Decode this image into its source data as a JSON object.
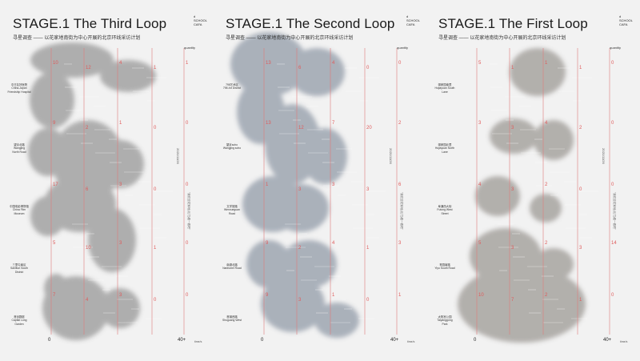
{
  "panels": [
    {
      "title": "STAGE.1 The Third Loop",
      "subtitle": "寻星调查 —— 以花家地南街为中心开展的北京环线采访计划",
      "logo": "d\nSCHOOL\nCAFA",
      "quantity_label": "quantity",
      "date_text": "2021/11/26",
      "note_text": "\"我们去花家地(北门)看一看吧\"",
      "axis_start": "0",
      "axis_end": "40+",
      "axis_unit": "time/s",
      "blob_color": "#a7a7a7",
      "stops": [
        {
          "label": "中日友好医院\nChina-Japan\nFriendship Hospital"
        },
        {
          "label": "望京北路\nWangjing\nNorth Road"
        },
        {
          "label": "中国电影博物馆\nChina Film\nMuseum"
        },
        {
          "label": "三里屯南区\nSanlitun South\nDistrict"
        },
        {
          "label": "首创郡庭\nCapital Long\nGarden"
        }
      ],
      "numbers": [
        "10",
        "12",
        "4",
        "1",
        "1",
        "9",
        "2",
        "1",
        "0",
        "0",
        "17",
        "6",
        "3",
        "0",
        "0",
        "5",
        "10",
        "3",
        "1",
        "0",
        "7",
        "4",
        "3",
        "0",
        "0"
      ]
    },
    {
      "title": "STAGE.1 The Second Loop",
      "subtitle": "寻星调查 —— 以花家地南街为中心开展的北京环线采访计划",
      "logo": "d\nSCHOOL\nCAFA",
      "quantity_label": "quantity",
      "date_text": "2021/11/26",
      "note_text": "\"我们去花家地(北门)看一看吧\"",
      "axis_start": "0",
      "axis_end": "40+",
      "axis_unit": "time/s",
      "blob_color": "#a3aab5",
      "stops": [
        {
          "label": "798艺术区\n798 Art District"
        },
        {
          "label": "望京soho\nWangjing soho"
        },
        {
          "label": "文学馆路\nWenxueguan\nRoad"
        },
        {
          "label": "南湖北路\nNanhubei Road"
        },
        {
          "label": "首钢西路\nShuguang West"
        }
      ],
      "numbers": [
        "13",
        "6",
        "4",
        "0",
        "0",
        "13",
        "12",
        "7",
        "20",
        "2",
        "1",
        "3",
        "3",
        "3",
        "6",
        "9",
        "2",
        "4",
        "1",
        "3",
        "9",
        "3",
        "1",
        "0",
        "1"
      ]
    },
    {
      "title": "STAGE.1 The First Loop",
      "subtitle": "寻星调查 —— 以花家地南街为中心开展的北京环线采访计划",
      "logo": "d\nSCHOOL\nCAFA",
      "quantity_label": "quantity",
      "date_text": "2021/11/26",
      "note_text": "\"我们去花家地(北门)看一看吧\"",
      "axis_start": "0",
      "axis_end": "40+",
      "axis_unit": "time/s",
      "blob_color": "#aca9a5",
      "stops": [
        {
          "label": "湖家园南里\nHujiayuan South\nLane"
        },
        {
          "label": "湖家园北里\nHujiayuan North\nLane"
        },
        {
          "label": "阜通西大街\nFutong West\nStreet"
        },
        {
          "label": "育园南路\nYiyu South Road"
        },
        {
          "label": "太阳宫公园\nTaiyanggong\nPark"
        }
      ],
      "numbers": [
        "5",
        "1",
        "1",
        "1",
        "0",
        "3",
        "3",
        "4",
        "2",
        "0",
        "4",
        "3",
        "2",
        "0",
        "0",
        "5",
        "3",
        "2",
        "3",
        "14",
        "10",
        "7",
        "2",
        "1",
        "0"
      ]
    }
  ]
}
